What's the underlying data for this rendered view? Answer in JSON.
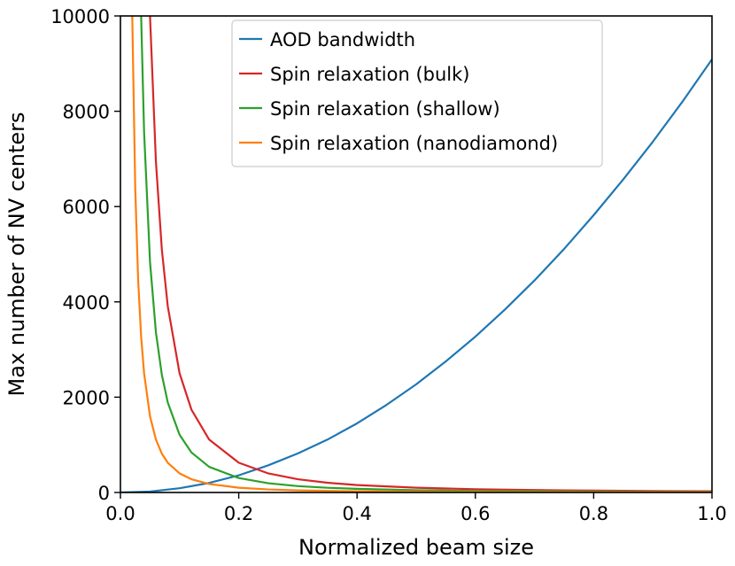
{
  "chart_data": {
    "type": "line",
    "xlabel": "Normalized beam size",
    "ylabel": "Max number of NV centers",
    "xlim": [
      0.0,
      1.0
    ],
    "ylim": [
      0,
      10000
    ],
    "xticks": [
      0.0,
      0.2,
      0.4,
      0.6,
      0.8,
      1.0
    ],
    "xtick_labels": [
      "0.0",
      "0.2",
      "0.4",
      "0.6",
      "0.8",
      "1.0"
    ],
    "yticks": [
      0,
      2000,
      4000,
      6000,
      8000,
      10000
    ],
    "ytick_labels": [
      "0",
      "2000",
      "4000",
      "6000",
      "8000",
      "10000"
    ],
    "grid": false,
    "legend_position": "upper-center",
    "series": [
      {
        "name": "AOD bandwidth",
        "color": "#1f77b4",
        "x": [
          0.0,
          0.05,
          0.1,
          0.15,
          0.2,
          0.25,
          0.3,
          0.35,
          0.4,
          0.45,
          0.5,
          0.55,
          0.6,
          0.65,
          0.7,
          0.75,
          0.8,
          0.85,
          0.9,
          0.95,
          1.0
        ],
        "y": [
          0,
          20,
          90,
          200,
          360,
          570,
          820,
          1110,
          1450,
          1840,
          2270,
          2750,
          3270,
          3840,
          4450,
          5110,
          5820,
          6570,
          7360,
          8200,
          9090
        ]
      },
      {
        "name": "Spin relaxation (bulk)",
        "color": "#d62728",
        "x": [
          0.05,
          0.06,
          0.07,
          0.08,
          0.1,
          0.12,
          0.15,
          0.2,
          0.25,
          0.3,
          0.35,
          0.4,
          0.5,
          0.6,
          0.7,
          0.8,
          0.9,
          1.0
        ],
        "y": [
          10000,
          6940,
          5100,
          3910,
          2500,
          1740,
          1110,
          625,
          400,
          278,
          204,
          156,
          100,
          69,
          51,
          39,
          31,
          25
        ]
      },
      {
        "name": "Spin relaxation (shallow)",
        "color": "#2ca02c",
        "x": [
          0.035,
          0.04,
          0.05,
          0.06,
          0.07,
          0.08,
          0.1,
          0.12,
          0.15,
          0.2,
          0.25,
          0.3,
          0.35,
          0.4,
          0.5,
          0.6,
          0.7,
          0.8,
          0.9,
          1.0
        ],
        "y": [
          10000,
          7560,
          4840,
          3360,
          2470,
          1890,
          1210,
          840,
          538,
          303,
          194,
          134,
          99,
          76,
          48,
          34,
          25,
          19,
          15,
          12
        ]
      },
      {
        "name": "Spin relaxation (nanodiamond)",
        "color": "#ff7f0e",
        "x": [
          0.02,
          0.025,
          0.03,
          0.035,
          0.04,
          0.05,
          0.06,
          0.07,
          0.08,
          0.1,
          0.12,
          0.15,
          0.2,
          0.25,
          0.3,
          0.4,
          0.5,
          0.6,
          0.7,
          0.8,
          0.9,
          1.0
        ],
        "y": [
          10000,
          6400,
          4440,
          3270,
          2500,
          1600,
          1110,
          816,
          625,
          400,
          278,
          178,
          100,
          64,
          44,
          25,
          16,
          11,
          8,
          6,
          5,
          4
        ]
      }
    ]
  }
}
